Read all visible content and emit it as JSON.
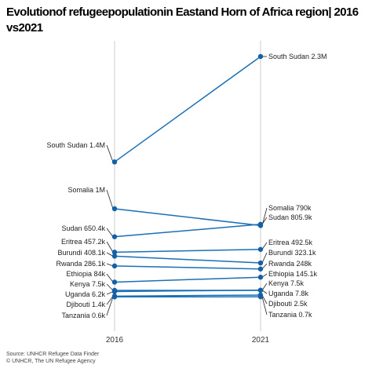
{
  "title": "Evolutionof refugeepopulationin Eastand Horn of Africa region| 2016 vs2021",
  "source": "Source: UNHCR Refugee Data Finder",
  "copyright": "© UNHCR, The UN Refugee Agency",
  "colors": {
    "line": "#1a6fb5",
    "marker": "#1460a8",
    "axis": "#cccccc",
    "connector": "#222222"
  },
  "chart_data": {
    "type": "slope",
    "title": "Evolutionof refugeepopulationin Eastand Horn of Africa region| 2016 vs2021",
    "x": [
      "2016",
      "2021"
    ],
    "unit": "refugees",
    "series": [
      {
        "name": "South Sudan",
        "values": [
          1400000,
          2300000
        ],
        "labels": [
          "South Sudan 1.4M",
          "South Sudan 2.3M"
        ]
      },
      {
        "name": "Somalia",
        "values": [
          1000000,
          790000
        ],
        "labels": [
          "Somalia 1M",
          "Somalia 790k"
        ]
      },
      {
        "name": "Sudan",
        "values": [
          650400,
          805900
        ],
        "labels": [
          "Sudan 650.4k",
          "Sudan 805.9k"
        ]
      },
      {
        "name": "Eritrea",
        "values": [
          457200,
          492500
        ],
        "labels": [
          "Eritrea 457.2k",
          "Eritrea 492.5k"
        ]
      },
      {
        "name": "Burundi",
        "values": [
          408100,
          323100
        ],
        "labels": [
          "Burundi 408.1k",
          "Burundi 323.1k"
        ]
      },
      {
        "name": "Rwanda",
        "values": [
          286100,
          248000
        ],
        "labels": [
          "Rwanda 286.1k",
          "Rwanda 248k"
        ]
      },
      {
        "name": "Ethiopia",
        "values": [
          84000,
          145100
        ],
        "labels": [
          "Ethiopia 84k",
          "Ethiopia 145.1k"
        ]
      },
      {
        "name": "Kenya",
        "values": [
          7500,
          7500
        ],
        "labels": [
          "Kenya 7.5k",
          "Kenya 7.5k"
        ]
      },
      {
        "name": "Uganda",
        "values": [
          6200,
          7800
        ],
        "labels": [
          "Uganda 6.2k",
          "Uganda 7.8k"
        ]
      },
      {
        "name": "Djibouti",
        "values": [
          1400,
          2500
        ],
        "labels": [
          "Djibouti 1.4k",
          "Djibouti 2.5k"
        ]
      },
      {
        "name": "Tanzania",
        "values": [
          600,
          700
        ],
        "labels": [
          "Tanzania 0.6k",
          "Tanzania 0.7k"
        ]
      }
    ]
  }
}
